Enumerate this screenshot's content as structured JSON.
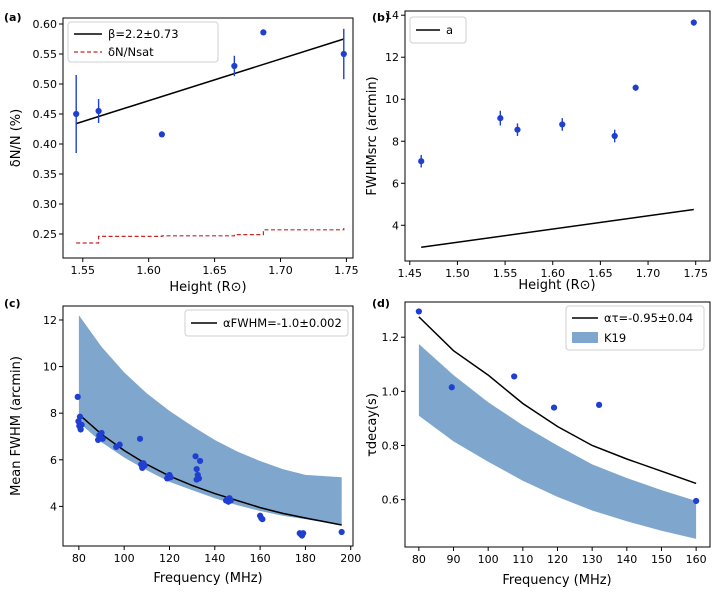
{
  "chart_data": [
    {
      "panel_label": "(a)",
      "type": "scatter",
      "xlabel": "Height (R⊙)",
      "ylabel": "δN/N (%)",
      "xlim": [
        1.535,
        1.755
      ],
      "ylim": [
        0.21,
        0.61
      ],
      "xticks": [
        1.55,
        1.6,
        1.65,
        1.7,
        1.75
      ],
      "xtick_labels": [
        "1.55",
        "1.60",
        "1.65",
        "1.70",
        "1.75"
      ],
      "yticks": [
        0.25,
        0.3,
        0.35,
        0.4,
        0.45,
        0.5,
        0.55,
        0.6
      ],
      "ytick_labels": [
        "0.25",
        "0.30",
        "0.35",
        "0.40",
        "0.45",
        "0.50",
        "0.55",
        "0.60"
      ],
      "legend_position": "top-left",
      "series": [
        {
          "kind": "points",
          "color": "#1f3fd1",
          "x": [
            1.545,
            1.562,
            1.61,
            1.665,
            1.687,
            1.748
          ],
          "y": [
            0.45,
            0.455,
            0.416,
            0.53,
            0.586,
            0.55
          ],
          "yerr": [
            0.065,
            0.02,
            0.003,
            0.017,
            0.003,
            0.042
          ]
        },
        {
          "kind": "line",
          "name": "β=2.2±0.73",
          "color": "#000000",
          "x": [
            1.545,
            1.748
          ],
          "y": [
            0.434,
            0.575
          ]
        },
        {
          "kind": "step",
          "name": "δN/Nsat",
          "color": "#c62828",
          "x": [
            1.545,
            1.562,
            1.61,
            1.665,
            1.687,
            1.748
          ],
          "y": [
            0.235,
            0.246,
            0.247,
            0.249,
            0.257,
            0.26
          ]
        }
      ]
    },
    {
      "panel_label": "(b)",
      "type": "scatter",
      "xlabel": "Height (R⊙)",
      "ylabel": "FWHMsrc (arcmin)",
      "xlim": [
        1.445,
        1.765
      ],
      "ylim": [
        2.3,
        14.2
      ],
      "xticks": [
        1.45,
        1.5,
        1.55,
        1.6,
        1.65,
        1.7,
        1.75
      ],
      "xtick_labels": [
        "1.45",
        "1.50",
        "1.55",
        "1.60",
        "1.65",
        "1.70",
        "1.75"
      ],
      "yticks": [
        4,
        6,
        8,
        10,
        12,
        14
      ],
      "ytick_labels": [
        "4",
        "6",
        "8",
        "10",
        "12",
        "14"
      ],
      "legend_position": "top-left",
      "series": [
        {
          "kind": "points",
          "color": "#1f3fd1",
          "x": [
            1.462,
            1.545,
            1.563,
            1.61,
            1.665,
            1.687,
            1.748
          ],
          "y": [
            7.05,
            9.1,
            8.55,
            8.8,
            8.25,
            10.55,
            13.65
          ],
          "yerr": [
            0.3,
            0.35,
            0.3,
            0.3,
            0.3,
            0.15,
            0.15
          ]
        },
        {
          "kind": "line",
          "name": "a",
          "color": "#000000",
          "x": [
            1.462,
            1.748
          ],
          "y": [
            2.95,
            4.75
          ]
        }
      ]
    },
    {
      "panel_label": "(c)",
      "type": "scatter",
      "xlabel": "Frequency (MHz)",
      "ylabel": "Mean FWHM (arcmin)",
      "xlim": [
        73,
        201
      ],
      "ylim": [
        2.3,
        12.6
      ],
      "xticks": [
        80,
        100,
        120,
        140,
        160,
        180,
        200
      ],
      "xtick_labels": [
        "80",
        "100",
        "120",
        "140",
        "160",
        "180",
        "200"
      ],
      "yticks": [
        4,
        6,
        8,
        10,
        12
      ],
      "ytick_labels": [
        "4",
        "6",
        "8",
        "10",
        "12"
      ],
      "legend_position": "top-right",
      "series": [
        {
          "kind": "band",
          "color": "#7fa6cc",
          "x": [
            80,
            90,
            100,
            110,
            120,
            130,
            140,
            150,
            160,
            170,
            180,
            196
          ],
          "y_low": [
            7.6,
            6.75,
            6.1,
            5.55,
            5.05,
            4.7,
            4.35,
            4.05,
            3.8,
            3.6,
            3.45,
            3.2
          ],
          "y_high": [
            12.2,
            10.85,
            9.75,
            8.85,
            8.1,
            7.45,
            6.85,
            6.35,
            5.95,
            5.6,
            5.35,
            5.25
          ]
        },
        {
          "kind": "line",
          "name": "αFWHM=-1.0±0.002",
          "color": "#000000",
          "x": [
            80,
            90,
            100,
            110,
            120,
            130,
            140,
            150,
            160,
            170,
            180,
            196
          ],
          "y": [
            7.95,
            7.1,
            6.4,
            5.8,
            5.3,
            4.9,
            4.55,
            4.25,
            3.95,
            3.7,
            3.5,
            3.2
          ]
        },
        {
          "kind": "points",
          "color": "#1f3fd1",
          "x": [
            79.5,
            79.8,
            80.2,
            80.5,
            80.8,
            81.2,
            88.5,
            89,
            89.5,
            90,
            90.5,
            96.5,
            98,
            107,
            107.5,
            108,
            108.5,
            109,
            108,
            119,
            119.5,
            120,
            120.5,
            131.5,
            132,
            132.5,
            133,
            133.5,
            132,
            145,
            145.5,
            146,
            146.5,
            147,
            160,
            160.5,
            161,
            177.5,
            178,
            178.5,
            179,
            196
          ],
          "y": [
            8.7,
            7.65,
            7.45,
            7.85,
            7.3,
            7.5,
            6.85,
            7.05,
            6.95,
            7.15,
            6.9,
            6.55,
            6.65,
            6.9,
            5.8,
            5.7,
            5.85,
            5.75,
            5.65,
            5.2,
            5.3,
            5.35,
            5.25,
            6.15,
            5.6,
            5.35,
            5.2,
            5.95,
            5.15,
            4.25,
            4.3,
            4.2,
            4.35,
            4.25,
            3.6,
            3.5,
            3.45,
            2.85,
            2.8,
            2.75,
            2.85,
            2.9
          ]
        }
      ]
    },
    {
      "panel_label": "(d)",
      "type": "scatter",
      "xlabel": "Frequency (MHz)",
      "ylabel": "τdecay(s)",
      "xlim": [
        76,
        164
      ],
      "ylim": [
        0.425,
        1.33
      ],
      "xticks": [
        80,
        90,
        100,
        110,
        120,
        130,
        140,
        150,
        160
      ],
      "xtick_labels": [
        "80",
        "90",
        "100",
        "110",
        "120",
        "130",
        "140",
        "150",
        "160"
      ],
      "yticks": [
        0.6,
        0.8,
        1.0,
        1.2
      ],
      "ytick_labels": [
        "0.6",
        "0.8",
        "1.0",
        "1.2"
      ],
      "legend_position": "top-right",
      "series": [
        {
          "kind": "band",
          "name": "K19",
          "color": "#7fa6cc",
          "x": [
            80,
            90,
            100,
            110,
            120,
            130,
            140,
            150,
            160
          ],
          "y_low": [
            0.91,
            0.815,
            0.74,
            0.67,
            0.61,
            0.56,
            0.52,
            0.485,
            0.455
          ],
          "y_high": [
            1.175,
            1.06,
            0.96,
            0.875,
            0.8,
            0.73,
            0.68,
            0.635,
            0.595
          ]
        },
        {
          "kind": "line",
          "name": "ατ=-0.95±0.04",
          "color": "#000000",
          "x": [
            80,
            90,
            100,
            110,
            120,
            130,
            140,
            150,
            160
          ],
          "y": [
            1.275,
            1.15,
            1.06,
            0.955,
            0.87,
            0.8,
            0.75,
            0.705,
            0.66
          ]
        },
        {
          "kind": "points",
          "color": "#1f3fd1",
          "x": [
            80,
            89.5,
            107.5,
            119,
            132,
            160
          ],
          "y": [
            1.295,
            1.015,
            1.055,
            0.94,
            0.95,
            0.595
          ]
        }
      ]
    }
  ]
}
